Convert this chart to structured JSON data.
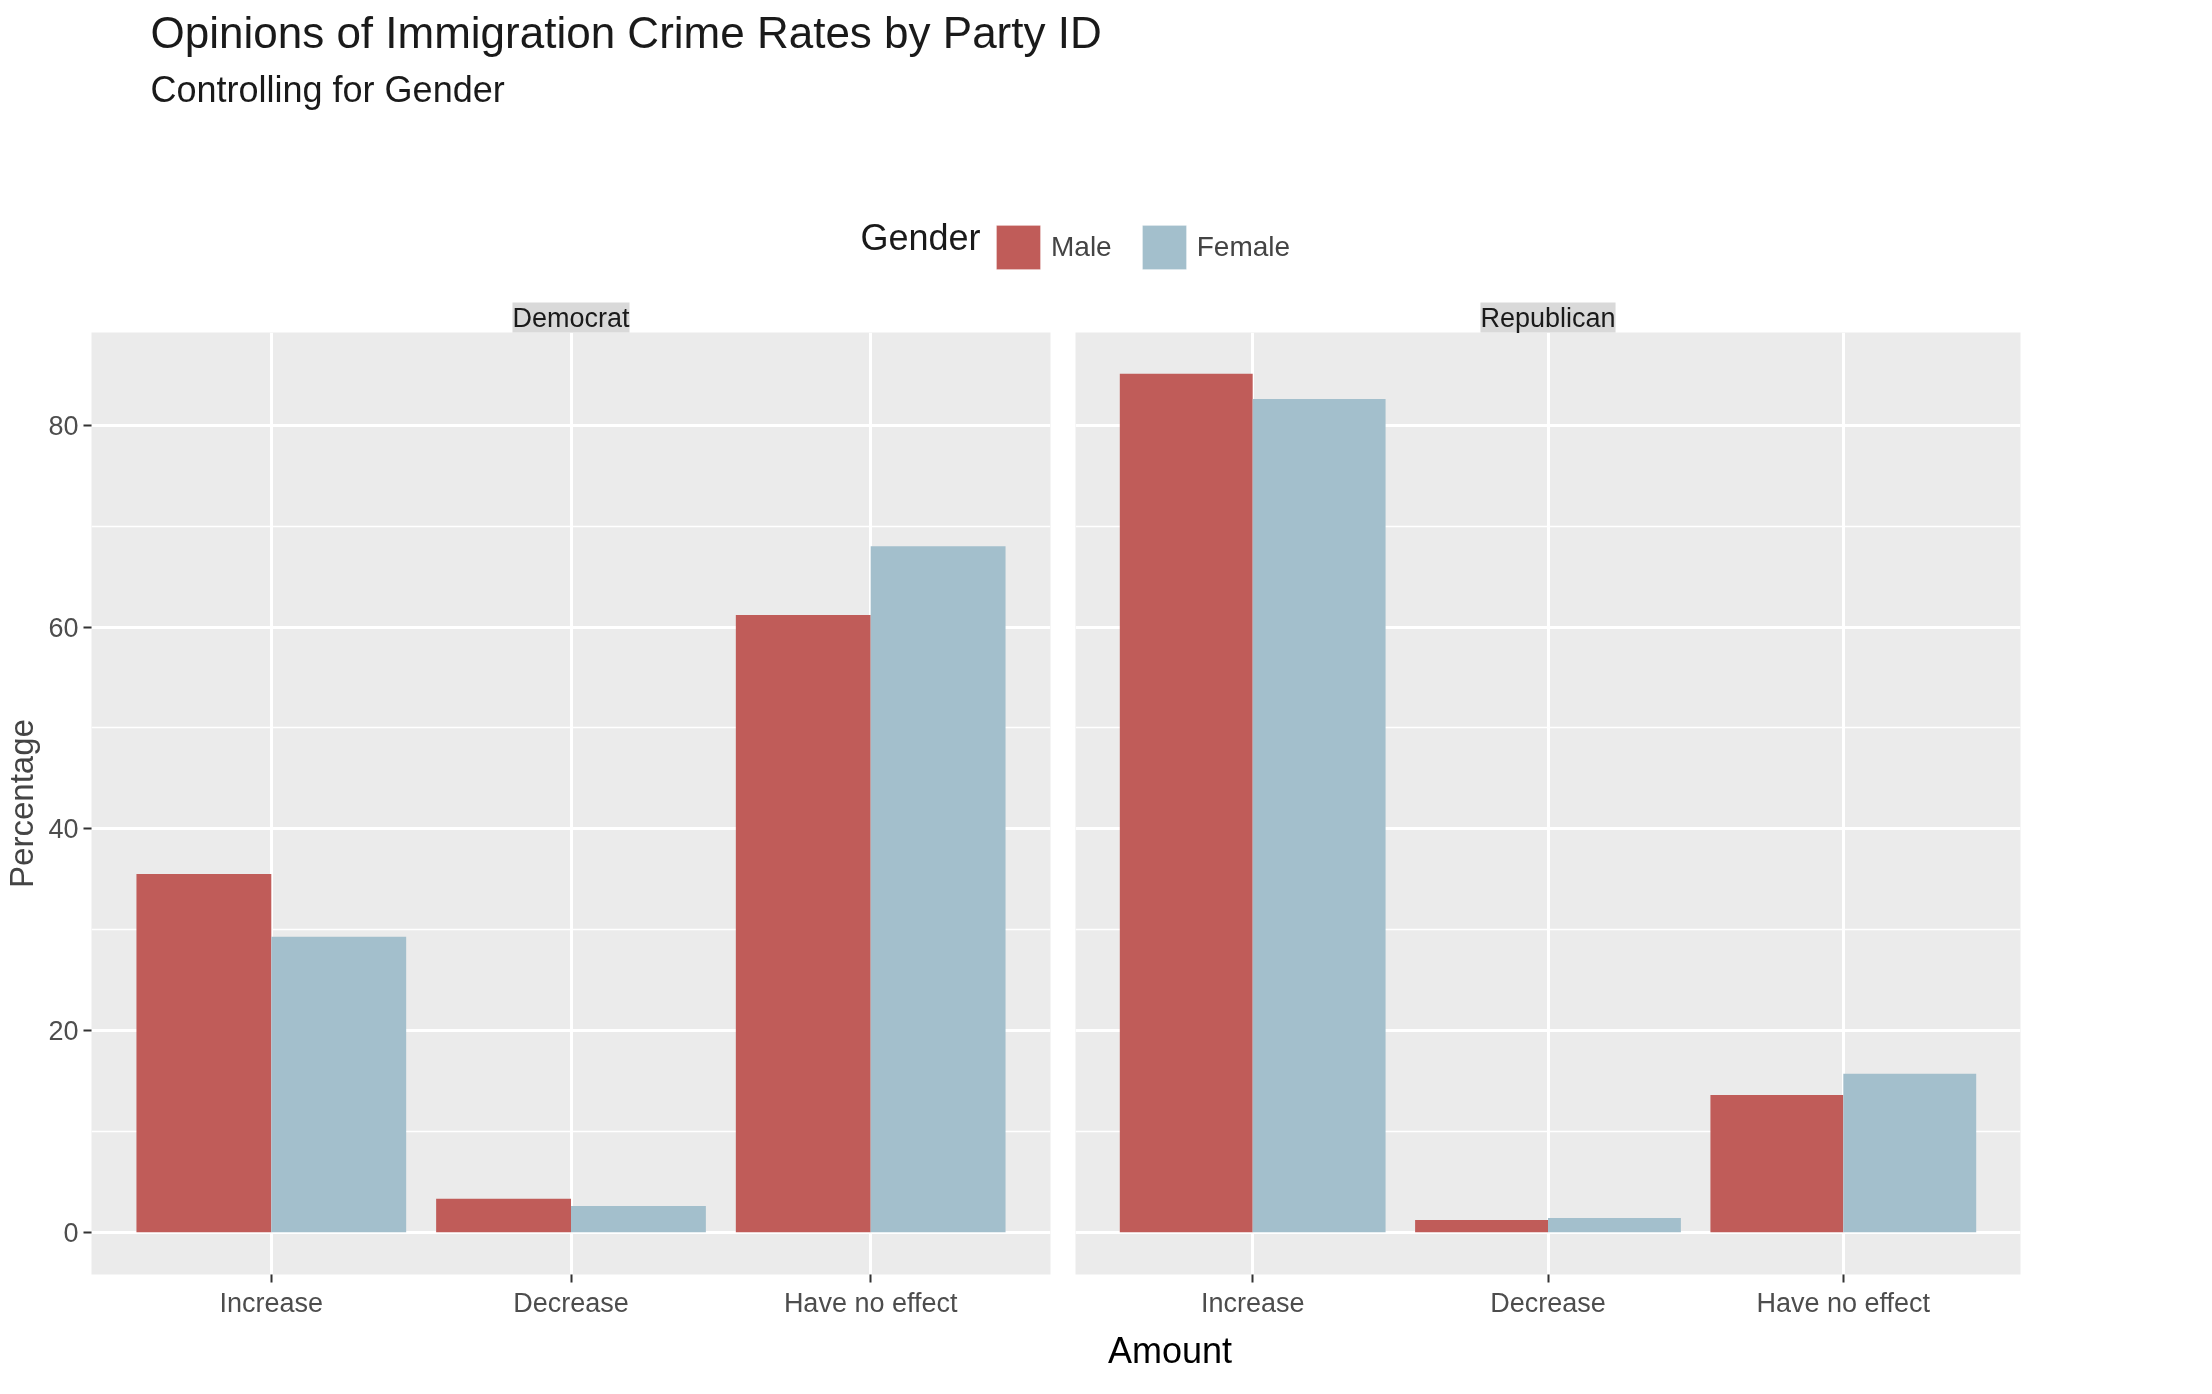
{
  "chart_data": [
    {
      "type": "bar",
      "title": "Opinions of Immigration Crime Rates by Party ID",
      "subtitle": "Controlling for Gender",
      "legend_title": "Gender",
      "legend": "top",
      "xlabel": "Amount",
      "ylabel": "Percentage",
      "annotations": [
        "Democrat"
      ],
      "categories": [
        "Increase",
        "Decrease",
        "Have no effect"
      ],
      "series": [
        {
          "name": "Male",
          "color": "#c05c59",
          "values": [
            35.5,
            3.3,
            61.2
          ]
        },
        {
          "name": "Female",
          "color": "#a3bfcc",
          "values": [
            29.3,
            2.6,
            68.0
          ]
        }
      ],
      "ylim": [
        -4.2,
        89.2
      ],
      "yticks": [
        0,
        20,
        40,
        60,
        80
      ],
      "grid": true
    },
    {
      "type": "bar",
      "annotations": [
        "Republican"
      ],
      "categories": [
        "Increase",
        "Decrease",
        "Have no effect"
      ],
      "tick_labels": "x",
      "series": [
        {
          "color": "#c05c59",
          "values": [
            85.1,
            1.2,
            13.6
          ]
        },
        {
          "color": "#a3bfcc",
          "values": [
            82.6,
            1.4,
            15.7
          ]
        }
      ],
      "ylim": [
        -4.2,
        89.2
      ],
      "yticks": [
        0,
        20,
        40,
        60,
        80
      ],
      "grid": true
    }
  ]
}
